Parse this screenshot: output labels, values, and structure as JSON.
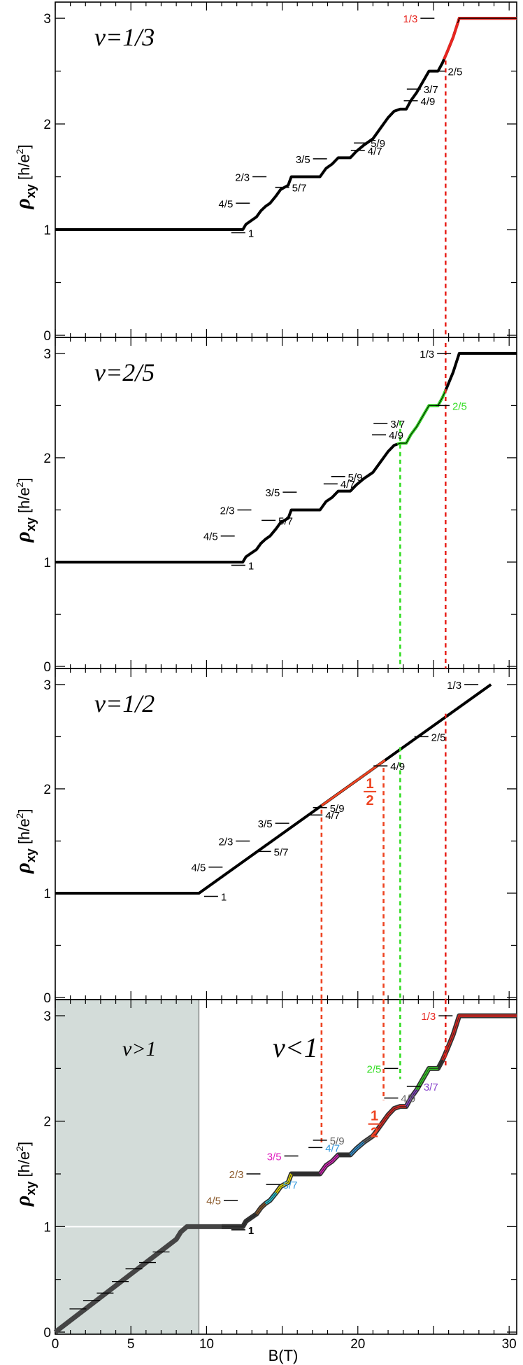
{
  "chart_data": {
    "type": "line",
    "xlabel": "B(T)",
    "x_ticks": [
      "0",
      "5",
      "10",
      "20",
      "30"
    ],
    "y_ticks": [
      "0",
      "1",
      "2",
      "3"
    ],
    "xlim": [
      0,
      30.5
    ],
    "ylim": [
      0,
      3.1
    ],
    "ylabel_main": "ρ",
    "ylabel_sub": "xy",
    "ylabel_unit_a": " [h/e",
    "ylabel_unit_sup": "2",
    "ylabel_unit_b": "]",
    "colors": {
      "main_curve": "#000000",
      "red": "#e8251f",
      "green": "#33dd22",
      "orange_red": "#ee4422",
      "shade": "#d3dcd9",
      "brown": "#8b5a2b",
      "magenta": "#e020c0",
      "blue": "#3399dd",
      "purple": "#8844cc",
      "gray": "#666666",
      "yellow": "#f2e600",
      "cyan": "#22ccdd"
    },
    "panels": [
      {
        "title": "ν=1/3",
        "labels": [
          {
            "text": "1",
            "x": 12.1,
            "y": 0.97,
            "side": "right",
            "color": "black"
          },
          {
            "text": "4/5",
            "x": 12.4,
            "y": 1.25,
            "side": "left",
            "color": "black"
          },
          {
            "text": "2/3",
            "x": 13.5,
            "y": 1.5,
            "side": "left",
            "color": "black"
          },
          {
            "text": "5/7",
            "x": 15.0,
            "y": 1.4,
            "side": "right",
            "color": "black"
          },
          {
            "text": "3/5",
            "x": 17.5,
            "y": 1.67,
            "side": "left",
            "color": "black"
          },
          {
            "text": "4/7",
            "x": 20.0,
            "y": 1.75,
            "side": "right",
            "color": "black"
          },
          {
            "text": "5/9",
            "x": 20.2,
            "y": 1.82,
            "side": "right",
            "color": "black"
          },
          {
            "text": "4/9",
            "x": 23.5,
            "y": 2.22,
            "side": "right",
            "color": "black"
          },
          {
            "text": "3/7",
            "x": 23.7,
            "y": 2.33,
            "side": "right",
            "color": "black"
          },
          {
            "text": "2/5",
            "x": 25.3,
            "y": 2.5,
            "side": "right",
            "color": "black"
          },
          {
            "text": "1/3",
            "x": 24.6,
            "y": 3.0,
            "side": "left",
            "color": "red"
          }
        ],
        "vlines": [
          {
            "x": 25.8,
            "color": "red",
            "to_y": 2.6
          }
        ]
      },
      {
        "title": "ν=2/5",
        "labels": [
          {
            "text": "1",
            "x": 12.1,
            "y": 0.97,
            "side": "right",
            "color": "black"
          },
          {
            "text": "4/5",
            "x": 11.4,
            "y": 1.25,
            "side": "left",
            "color": "black"
          },
          {
            "text": "2/3",
            "x": 12.5,
            "y": 1.5,
            "side": "left",
            "color": "black"
          },
          {
            "text": "5/7",
            "x": 14.1,
            "y": 1.4,
            "side": "right",
            "color": "black"
          },
          {
            "text": "3/5",
            "x": 15.5,
            "y": 1.67,
            "side": "left",
            "color": "black"
          },
          {
            "text": "4/7",
            "x": 18.2,
            "y": 1.75,
            "side": "right",
            "color": "black"
          },
          {
            "text": "5/9",
            "x": 18.7,
            "y": 1.82,
            "side": "right",
            "color": "black"
          },
          {
            "text": "4/9",
            "x": 21.4,
            "y": 2.22,
            "side": "right",
            "color": "black"
          },
          {
            "text": "3/7",
            "x": 21.5,
            "y": 2.33,
            "side": "right",
            "color": "black"
          },
          {
            "text": "2/5",
            "x": 25.6,
            "y": 2.5,
            "side": "right",
            "color": "green"
          },
          {
            "text": "1/3",
            "x": 25.7,
            "y": 3.0,
            "side": "left",
            "color": "black"
          }
        ],
        "vlines": [
          {
            "x": 25.8,
            "color": "red",
            "to_y": 3.1
          },
          {
            "x": 22.8,
            "color": "green",
            "to_y": 2.35
          }
        ]
      },
      {
        "title": "ν=1/2",
        "labels": [
          {
            "text": "1",
            "x": 10.3,
            "y": 0.97,
            "side": "right",
            "color": "black"
          },
          {
            "text": "4/5",
            "x": 10.6,
            "y": 1.25,
            "side": "left",
            "color": "black"
          },
          {
            "text": "2/3",
            "x": 12.4,
            "y": 1.5,
            "side": "left",
            "color": "black"
          },
          {
            "text": "5/7",
            "x": 13.8,
            "y": 1.4,
            "side": "right",
            "color": "black"
          },
          {
            "text": "3/5",
            "x": 15.0,
            "y": 1.67,
            "side": "left",
            "color": "black"
          },
          {
            "text": "4/7",
            "x": 17.2,
            "y": 1.75,
            "side": "right",
            "color": "black"
          },
          {
            "text": "5/9",
            "x": 17.5,
            "y": 1.82,
            "side": "right",
            "color": "black"
          },
          {
            "text": "4/9",
            "x": 21.5,
            "y": 2.22,
            "side": "right",
            "color": "black"
          },
          {
            "text": "2/5",
            "x": 24.2,
            "y": 2.5,
            "side": "right",
            "color": "black"
          },
          {
            "text": "1/3",
            "x": 27.5,
            "y": 3.0,
            "side": "left",
            "color": "black"
          }
        ],
        "half_label": {
          "num": "1",
          "den": "2",
          "x": 20.8,
          "y": 1.98,
          "color": "orange_red"
        },
        "vlines": [
          {
            "x": 25.8,
            "color": "red",
            "to_y": 2.72
          },
          {
            "x": 22.8,
            "color": "green",
            "to_y": 2.4
          },
          {
            "x": 17.6,
            "color": "orange_red",
            "to_y": 1.8
          },
          {
            "x": 21.7,
            "color": "orange_red",
            "to_y": 2.2
          }
        ]
      },
      {
        "title": "ν>1",
        "title2": "ν<1",
        "labels": [
          {
            "text": "1",
            "x": 12.1,
            "y": 0.97,
            "side": "right",
            "color": "black",
            "bold": true
          },
          {
            "text": "4/5",
            "x": 11.6,
            "y": 1.25,
            "side": "left",
            "color": "brown"
          },
          {
            "text": "2/3",
            "x": 13.1,
            "y": 1.5,
            "side": "left",
            "color": "brown"
          },
          {
            "text": "5/7",
            "x": 14.4,
            "y": 1.4,
            "side": "right",
            "color": "blue"
          },
          {
            "text": "3/5",
            "x": 15.6,
            "y": 1.67,
            "side": "left",
            "color": "magenta"
          },
          {
            "text": "4/7",
            "x": 17.2,
            "y": 1.75,
            "side": "right",
            "color": "blue"
          },
          {
            "text": "5/9",
            "x": 17.5,
            "y": 1.82,
            "side": "right",
            "color": "gray"
          },
          {
            "text": "4/9",
            "x": 22.2,
            "y": 2.22,
            "side": "right",
            "color": "gray"
          },
          {
            "text": "3/7",
            "x": 23.7,
            "y": 2.33,
            "side": "right",
            "color": "purple"
          },
          {
            "text": "2/5",
            "x": 22.2,
            "y": 2.5,
            "side": "left",
            "color": "green"
          },
          {
            "text": "1/3",
            "x": 25.8,
            "y": 3.0,
            "side": "left",
            "color": "red"
          }
        ],
        "half_label": {
          "num": "1",
          "den": "2",
          "x": 21.1,
          "y": 1.98,
          "color": "orange_red"
        },
        "vlines": [
          {
            "x": 25.8,
            "color": "red",
            "from_y": 2.52
          },
          {
            "x": 22.8,
            "color": "green",
            "from_y": 2.4
          },
          {
            "x": 17.6,
            "color": "orange_red",
            "from_y": 1.8
          },
          {
            "x": 21.7,
            "color": "orange_red",
            "from_y": 2.2
          }
        ],
        "shaded_region": [
          0,
          9.5
        ]
      }
    ],
    "curves": {
      "staircase": [
        [
          0,
          1.0
        ],
        [
          12.4,
          1.0
        ],
        [
          12.6,
          1.05
        ],
        [
          12.9,
          1.08
        ],
        [
          13.3,
          1.12
        ],
        [
          13.6,
          1.18
        ],
        [
          13.9,
          1.22
        ],
        [
          14.2,
          1.25
        ],
        [
          14.6,
          1.32
        ],
        [
          14.9,
          1.38
        ],
        [
          15.4,
          1.42
        ],
        [
          15.6,
          1.5
        ],
        [
          17.5,
          1.5
        ],
        [
          17.9,
          1.58
        ],
        [
          18.3,
          1.62
        ],
        [
          18.7,
          1.68
        ],
        [
          19.5,
          1.68
        ],
        [
          19.9,
          1.74
        ],
        [
          20.4,
          1.8
        ],
        [
          21.0,
          1.86
        ],
        [
          21.6,
          1.98
        ],
        [
          22.0,
          2.06
        ],
        [
          22.4,
          2.12
        ],
        [
          22.8,
          2.14
        ],
        [
          23.2,
          2.14
        ],
        [
          23.5,
          2.22
        ],
        [
          23.9,
          2.3
        ],
        [
          24.3,
          2.4
        ],
        [
          24.7,
          2.5
        ],
        [
          25.3,
          2.5
        ],
        [
          25.6,
          2.58
        ],
        [
          25.9,
          2.68
        ],
        [
          26.3,
          2.82
        ],
        [
          26.7,
          3.0
        ],
        [
          30.5,
          3.0
        ]
      ],
      "half_line": [
        [
          0,
          1.0
        ],
        [
          9.5,
          1.0
        ],
        [
          28.8,
          3.0
        ]
      ],
      "low_field": [
        [
          0,
          0
        ],
        [
          8.0,
          0.88
        ],
        [
          8.3,
          0.95
        ],
        [
          8.7,
          1.0
        ],
        [
          12.2,
          1.0
        ]
      ]
    },
    "annotation": "ν<1"
  }
}
